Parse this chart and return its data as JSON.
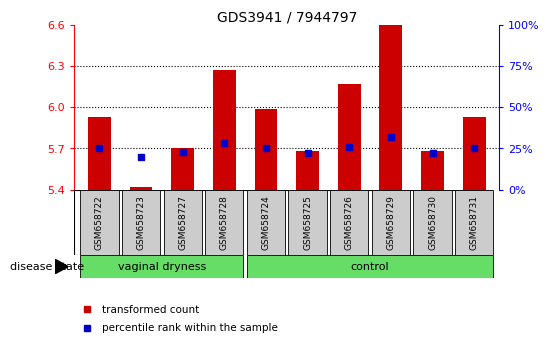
{
  "title": "GDS3941 / 7944797",
  "samples": [
    "GSM658722",
    "GSM658723",
    "GSM658727",
    "GSM658728",
    "GSM658724",
    "GSM658725",
    "GSM658726",
    "GSM658729",
    "GSM658730",
    "GSM658731"
  ],
  "n_vaginal": 4,
  "n_control": 6,
  "red_values": [
    5.93,
    5.42,
    5.7,
    6.27,
    5.99,
    5.68,
    6.17,
    6.6,
    5.68,
    5.93
  ],
  "blue_values": [
    25,
    20,
    23,
    28,
    25,
    22,
    26,
    32,
    22,
    25
  ],
  "ylim": [
    5.4,
    6.6
  ],
  "yticks": [
    5.4,
    5.7,
    6.0,
    6.3,
    6.6
  ],
  "right_ylim": [
    0,
    100
  ],
  "right_yticks": [
    0,
    25,
    50,
    75,
    100
  ],
  "bar_color": "#cc0000",
  "dot_color": "#0000cc",
  "green_color": "#66dd66",
  "gray_color": "#cccccc",
  "group_label": "disease state",
  "label_vaginal": "vaginal dryness",
  "label_control": "control",
  "legend_red": "transformed count",
  "legend_blue": "percentile rank within the sample",
  "background_color": "#ffffff",
  "bar_bottom": 5.4,
  "grid_yticks": [
    5.7,
    6.0,
    6.3
  ]
}
